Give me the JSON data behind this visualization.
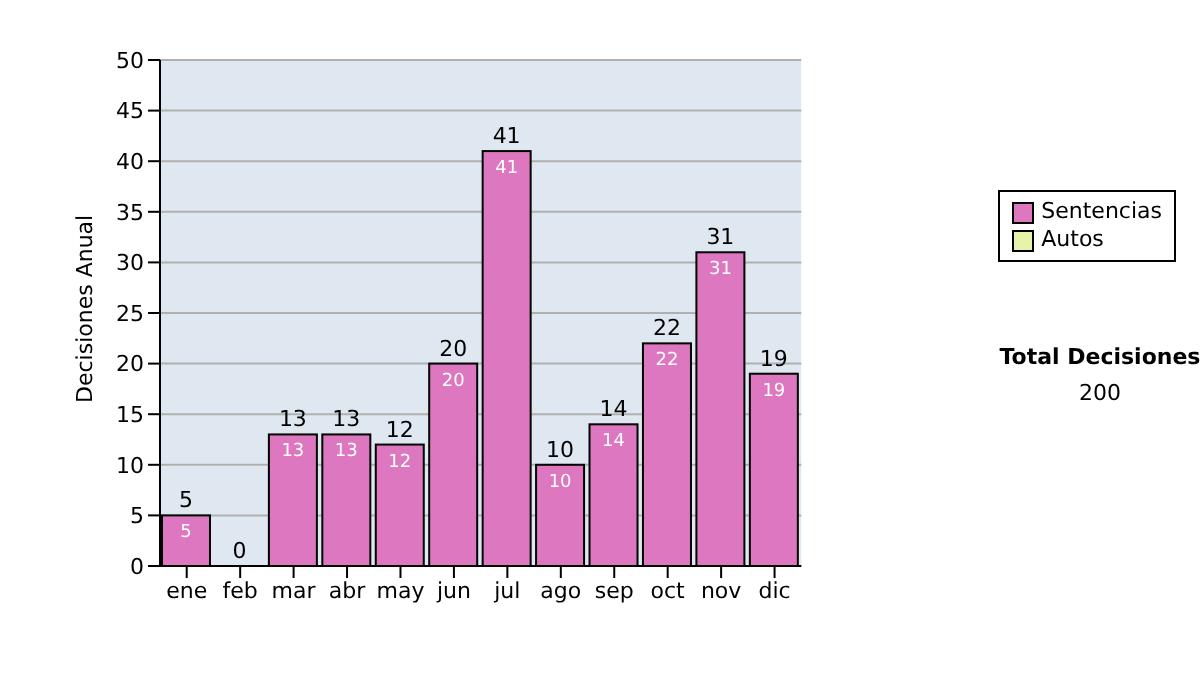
{
  "chart_data": {
    "type": "bar",
    "stacked": true,
    "ylabel": "Decisiones Anual",
    "categories": [
      "ene",
      "feb",
      "mar",
      "abr",
      "may",
      "jun",
      "jul",
      "ago",
      "sep",
      "oct",
      "nov",
      "dic"
    ],
    "series": [
      {
        "name": "Sentencias",
        "color": "#dd77c0",
        "values": [
          5,
          0,
          13,
          13,
          12,
          20,
          41,
          10,
          14,
          22,
          31,
          19
        ],
        "value_labels": [
          "5",
          null,
          "13",
          "13",
          "12",
          "20",
          "41",
          "10",
          "14",
          "22",
          "31",
          "19"
        ]
      },
      {
        "name": "Autos",
        "color": "#e8f2a8",
        "values": [
          0,
          0,
          0,
          0,
          0,
          0,
          0,
          0,
          0,
          0,
          0,
          0
        ]
      }
    ],
    "totals": [
      "5",
      "0",
      "13",
      "13",
      "12",
      "20",
      "41",
      "10",
      "14",
      "22",
      "31",
      "19"
    ],
    "ylim": [
      0,
      50
    ],
    "yticks": [
      0,
      5,
      10,
      15,
      20,
      25,
      30,
      35,
      40,
      45,
      50
    ],
    "grid": "y",
    "legend": "right",
    "annotations": [
      "Total Decisiones",
      "200"
    ]
  }
}
